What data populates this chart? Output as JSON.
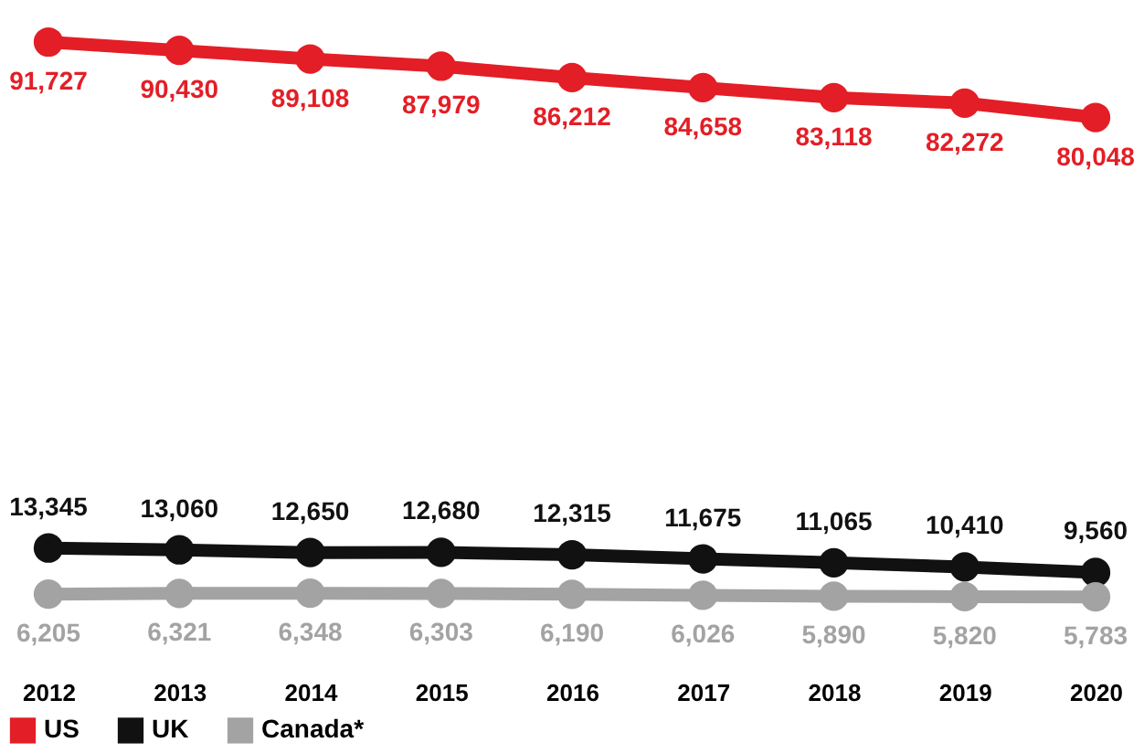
{
  "chart_data": {
    "type": "line",
    "categories": [
      "2012",
      "2013",
      "2014",
      "2015",
      "2016",
      "2017",
      "2018",
      "2019",
      "2020"
    ],
    "series": [
      {
        "name": "US",
        "color": "#e31e26",
        "values": [
          91727,
          90430,
          89108,
          87979,
          86212,
          84658,
          83118,
          82272,
          80048
        ],
        "value_labels": [
          "91,727",
          "90,430",
          "89,108",
          "87,979",
          "86,212",
          "84,658",
          "83,118",
          "82,272",
          "80,048"
        ]
      },
      {
        "name": "UK",
        "color": "#111111",
        "values": [
          13345,
          13060,
          12650,
          12680,
          12315,
          11675,
          11065,
          10410,
          9560
        ],
        "value_labels": [
          "13,345",
          "13,060",
          "12,650",
          "12,680",
          "12,315",
          "11,675",
          "11,065",
          "10,410",
          "9,560"
        ]
      },
      {
        "name": "Canada*",
        "color": "#a3a3a3",
        "values": [
          6205,
          6321,
          6348,
          6303,
          6190,
          6026,
          5890,
          5820,
          5783
        ],
        "value_labels": [
          "6,205",
          "6,321",
          "6,348",
          "6,303",
          "6,190",
          "6,026",
          "5,890",
          "5,820",
          "5,783"
        ]
      }
    ],
    "marker": "circle",
    "line_style": "solid",
    "grid": false,
    "legend": "bottom left",
    "tick_labels": "x"
  }
}
